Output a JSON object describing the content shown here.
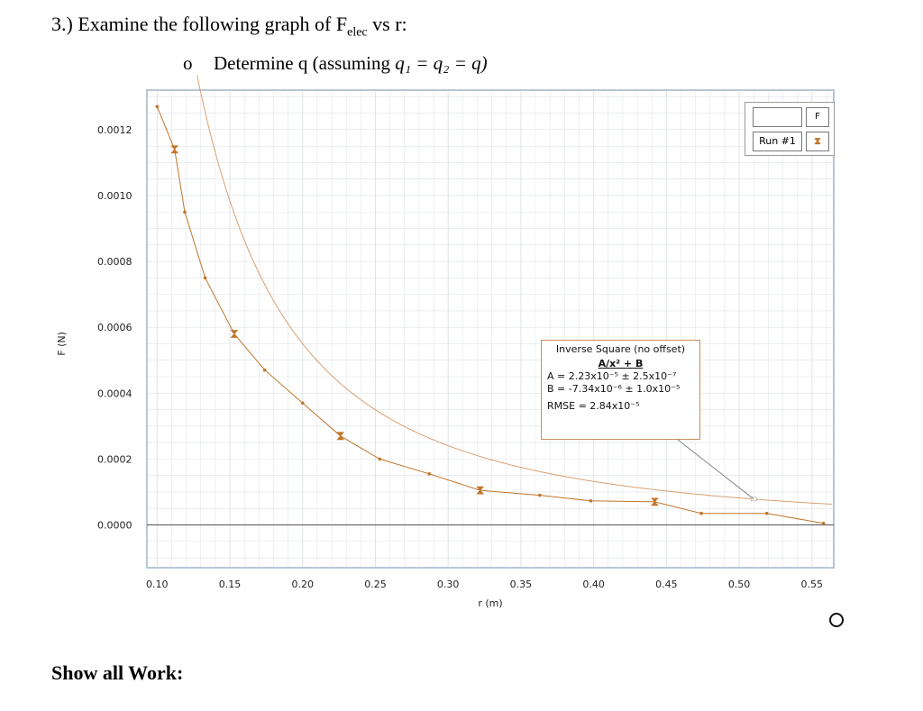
{
  "question": {
    "title_prefix": "3.) Examine the following graph of F",
    "title_sub": "elec",
    "title_suffix": " vs r:",
    "bullet": "o",
    "subtask_text": "Determine q  (assuming ",
    "subtask_math": "q₁ = q₂ = q)",
    "footer": "Show all Work:"
  },
  "legend": {
    "header": "F",
    "run_label": "Run #1",
    "symbol": "⧗"
  },
  "fit": {
    "title": "Inverse Square (no offset)",
    "equation": "A/x² + B",
    "line_a": "A = 2.23x10⁻⁵  ± 2.5x10⁻⁷",
    "line_b": "B = -7.34x10⁻⁶ ± 1.0x10⁻⁵",
    "rmse": "RMSE = 2.84x10⁻⁵"
  },
  "colors": {
    "series": "#c0762a",
    "fit": "#d9a070",
    "grid": "#dde3ea",
    "frame": "#b9c6d6"
  },
  "chart_data": {
    "type": "scatter",
    "title": "",
    "xlabel": "r (m)",
    "ylabel": "F (N)",
    "xlim": [
      0.093,
      0.565
    ],
    "ylim": [
      -0.00013,
      0.00132
    ],
    "x_ticks": [
      0.1,
      0.15,
      0.2,
      0.25,
      0.3,
      0.35,
      0.4,
      0.45,
      0.5,
      0.55
    ],
    "x_tick_labels": [
      "0.10",
      "0.15",
      "0.20",
      "0.25",
      "0.30",
      "0.35",
      "0.40",
      "0.45",
      "0.50",
      "0.55"
    ],
    "y_ticks": [
      0.0,
      0.0002,
      0.0004,
      0.0006,
      0.0008,
      0.001,
      0.0012
    ],
    "y_tick_labels": [
      "0.0000",
      "0.0002",
      "0.0004",
      "0.0006",
      "0.0008",
      "0.0010",
      "0.0012"
    ],
    "grid": true,
    "legend_position": "top-right",
    "series": [
      {
        "name": "Run #1",
        "x": [
          0.1,
          0.112,
          0.119,
          0.133,
          0.153,
          0.174,
          0.2,
          0.226,
          0.253,
          0.287,
          0.322,
          0.363,
          0.398,
          0.442,
          0.474,
          0.519,
          0.558
        ],
        "y": [
          0.00127,
          0.00114,
          0.00095,
          0.00075,
          0.00058,
          0.00047,
          0.00037,
          0.00027,
          0.0002,
          0.000155,
          0.000105,
          9e-05,
          7.3e-05,
          7e-05,
          3.5e-05,
          3.5e-05,
          5e-06
        ],
        "error_bar_x": [
          0.112,
          0.153,
          0.226,
          0.322,
          0.442
        ]
      }
    ],
    "fit": {
      "model": "A/x^2 + B",
      "A": 2.23e-05,
      "B": -7.34e-06
    }
  }
}
